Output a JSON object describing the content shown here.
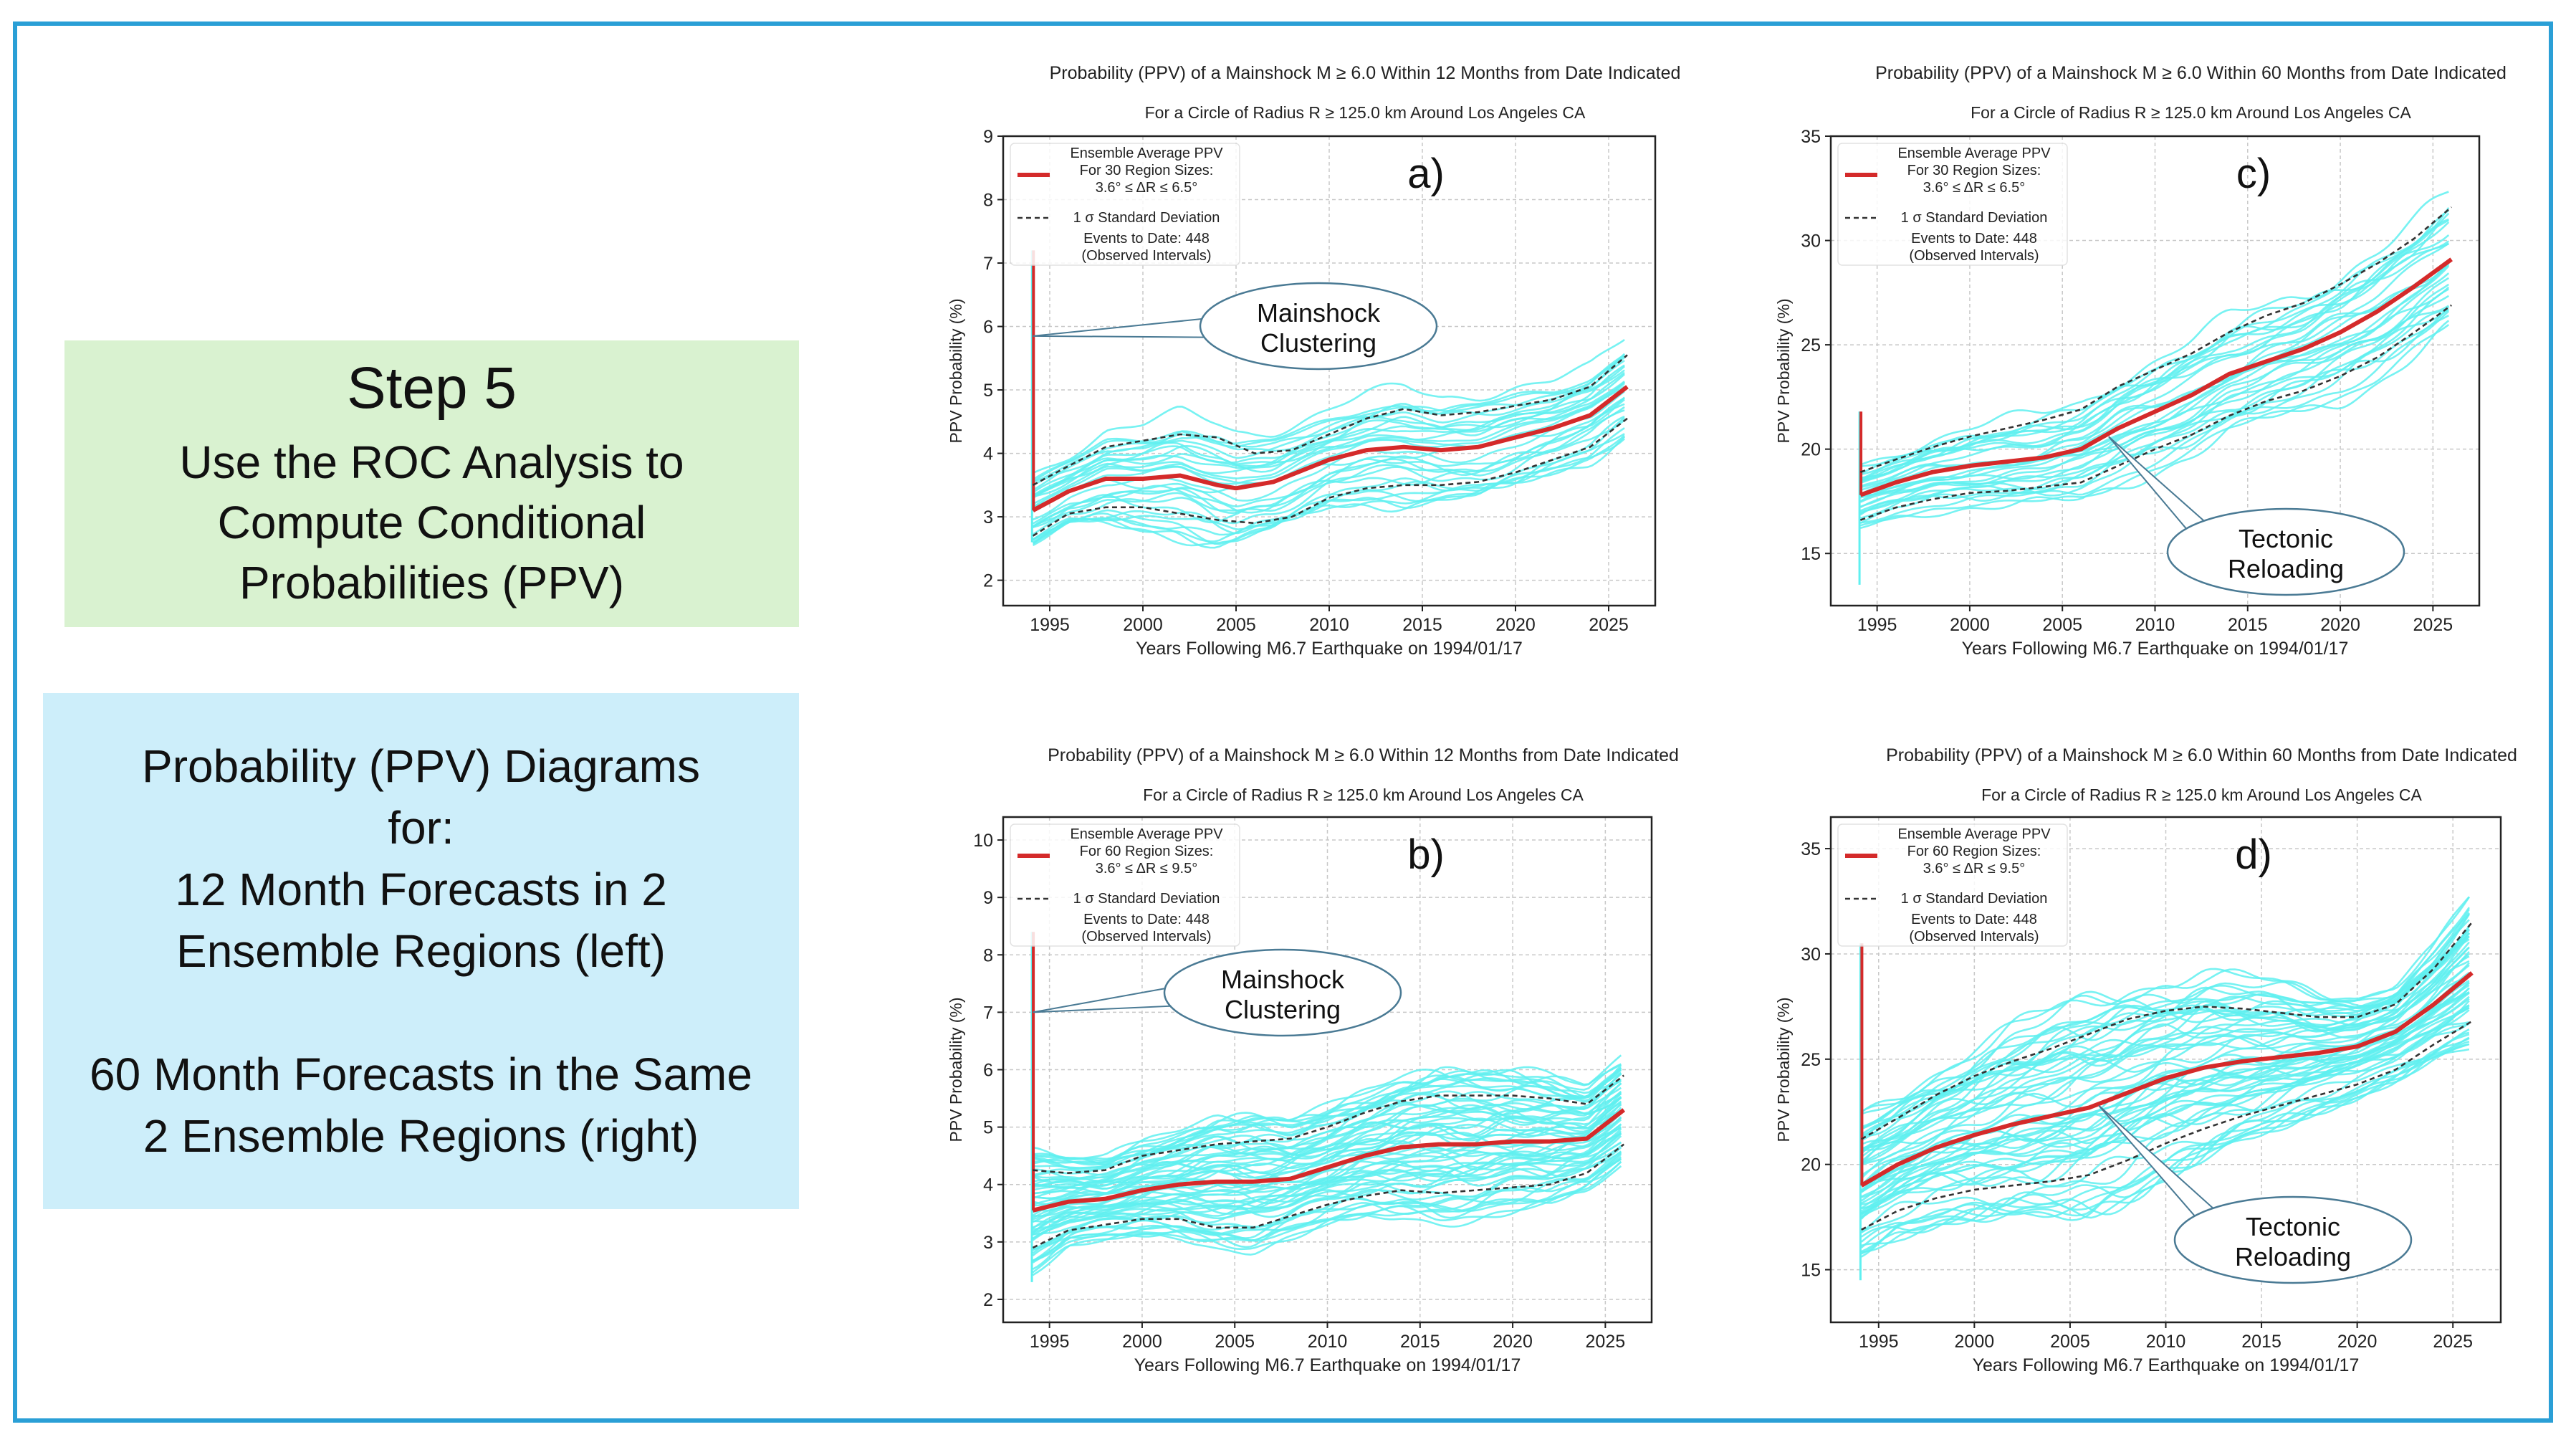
{
  "left_panel": {
    "step_title": "Step 5",
    "step_lines": [
      "Use the ROC Analysis to",
      "Compute Conditional",
      "Probabilities (PPV)"
    ],
    "info_lines_a": [
      "Probability (PPV) Diagrams",
      "for:",
      "12 Month Forecasts in 2",
      "Ensemble Regions (left)"
    ],
    "info_lines_b": [
      "60 Month Forecasts in the Same",
      "2 Ensemble Regions (right)"
    ]
  },
  "colors": {
    "frame": "#2a9fd6",
    "step_box": "#d9f2d0",
    "info_box": "#cdeefa",
    "ensemble_member": "#5ff0f0",
    "average": "#d42a2a",
    "std_dev": "#333333"
  },
  "chart_data": [
    {
      "id": "a",
      "type": "line",
      "panel_label": "a)",
      "title": "Probability (PPV) of a Mainshock M ≥ 6.0 Within 12 Months from Date Indicated",
      "subtitle": "For a Circle of Radius R ≥ 125.0 km Around Los Angeles CA",
      "xlabel": "Years Following M6.7 Earthquake on 1994/01/17",
      "ylabel": "PPV Probability (%)",
      "xlim": [
        1992.5,
        2027.5
      ],
      "ylim": [
        1.6,
        9.0
      ],
      "xticks": [
        1995,
        2000,
        2005,
        2010,
        2015,
        2020,
        2025
      ],
      "yticks": [
        2,
        3,
        4,
        5,
        6,
        7,
        8,
        9
      ],
      "grid": true,
      "legend_position": "top-left",
      "legend": {
        "average_label": [
          "Ensemble Average PPV",
          "For 30 Region Sizes:",
          "3.6° ≤ ΔR ≤ 6.5°"
        ],
        "std_label": "1 σ Standard Deviation",
        "events_label": [
          "Events to Date: 448",
          "(Observed Intervals)"
        ]
      },
      "callout": {
        "lines": [
          "Mainshock",
          "Clustering"
        ],
        "target": [
          1994.1,
          5.85
        ]
      },
      "spike": {
        "x": 1994.05,
        "ymax": 7.2,
        "ymin": 2.6
      },
      "series": [
        {
          "role": "average",
          "x": [
            1994.1,
            1996,
            1998,
            2000,
            2002,
            2004,
            2005,
            2007,
            2010,
            2012,
            2014,
            2016,
            2018,
            2020,
            2022,
            2024,
            2026
          ],
          "values": [
            3.1,
            3.4,
            3.6,
            3.6,
            3.65,
            3.5,
            3.45,
            3.55,
            3.9,
            4.05,
            4.1,
            4.05,
            4.1,
            4.25,
            4.4,
            4.6,
            5.05
          ]
        },
        {
          "role": "std_upper",
          "x": [
            1994.1,
            1996,
            1998,
            2000,
            2002,
            2004,
            2006,
            2008,
            2010,
            2012,
            2014,
            2016,
            2018,
            2020,
            2022,
            2024,
            2026
          ],
          "values": [
            3.5,
            3.8,
            4.1,
            4.2,
            4.3,
            4.25,
            4.0,
            4.05,
            4.3,
            4.55,
            4.7,
            4.6,
            4.65,
            4.75,
            4.85,
            5.05,
            5.55
          ]
        },
        {
          "role": "std_lower",
          "x": [
            1994.1,
            1996,
            1998,
            2000,
            2002,
            2004,
            2006,
            2008,
            2010,
            2012,
            2014,
            2016,
            2018,
            2020,
            2022,
            2024,
            2026
          ],
          "values": [
            2.7,
            3.05,
            3.15,
            3.15,
            3.05,
            2.95,
            2.9,
            3.0,
            3.3,
            3.45,
            3.5,
            3.5,
            3.55,
            3.7,
            3.9,
            4.1,
            4.55
          ]
        }
      ],
      "ensemble_members": 30
    },
    {
      "id": "c",
      "type": "line",
      "panel_label": "c)",
      "title": "Probability (PPV) of a Mainshock M ≥ 6.0 Within 60 Months from Date Indicated",
      "subtitle": "For a Circle of Radius R ≥ 125.0 km Around Los Angeles CA",
      "xlabel": "Years Following M6.7 Earthquake on 1994/01/17",
      "ylabel": "PPV Probability (%)",
      "xlim": [
        1992.5,
        2027.5
      ],
      "ylim": [
        12.5,
        35
      ],
      "xticks": [
        1995,
        2000,
        2005,
        2010,
        2015,
        2020,
        2025
      ],
      "yticks": [
        15,
        20,
        25,
        30,
        35
      ],
      "grid": true,
      "legend_position": "top-left",
      "legend": {
        "average_label": [
          "Ensemble Average PPV",
          "For 30 Region Sizes:",
          "3.6° ≤ ΔR ≤ 6.5°"
        ],
        "std_label": "1 σ Standard Deviation",
        "events_label": [
          "Events to Date: 448",
          "(Observed Intervals)"
        ]
      },
      "callout": {
        "lines": [
          "Tectonic",
          "Reloading"
        ],
        "target": [
          2007.5,
          20.6
        ]
      },
      "spike": {
        "x": 1994.05,
        "ymax": 21.8,
        "ymin": 13.5
      },
      "series": [
        {
          "role": "average",
          "x": [
            1994.1,
            1996,
            1998,
            2000,
            2002,
            2004,
            2006,
            2008,
            2010,
            2012,
            2014,
            2016,
            2018,
            2020,
            2022,
            2024,
            2026
          ],
          "values": [
            17.8,
            18.4,
            18.9,
            19.2,
            19.4,
            19.6,
            20.0,
            21.0,
            21.8,
            22.6,
            23.6,
            24.2,
            24.8,
            25.6,
            26.6,
            27.8,
            29.1
          ]
        },
        {
          "role": "std_upper",
          "x": [
            1994.1,
            1996,
            1998,
            2000,
            2002,
            2004,
            2006,
            2008,
            2010,
            2012,
            2014,
            2016,
            2018,
            2020,
            2022,
            2024,
            2026
          ],
          "values": [
            18.9,
            19.5,
            20.1,
            20.6,
            21.0,
            21.4,
            21.9,
            23.0,
            23.8,
            24.6,
            25.6,
            26.4,
            27.0,
            27.9,
            28.9,
            30.1,
            31.6
          ]
        },
        {
          "role": "std_lower",
          "x": [
            1994.1,
            1996,
            1998,
            2000,
            2002,
            2004,
            2006,
            2008,
            2010,
            2012,
            2014,
            2016,
            2018,
            2020,
            2022,
            2024,
            2026
          ],
          "values": [
            16.6,
            17.2,
            17.6,
            17.9,
            18.0,
            18.2,
            18.4,
            19.2,
            20.0,
            20.7,
            21.6,
            22.3,
            22.8,
            23.5,
            24.4,
            25.6,
            26.9
          ]
        }
      ],
      "ensemble_members": 30
    },
    {
      "id": "b",
      "type": "line",
      "panel_label": "b)",
      "title": "Probability (PPV) of a Mainshock M ≥ 6.0 Within 12 Months from Date Indicated",
      "subtitle": "For a Circle of Radius R ≥ 125.0 km Around Los Angeles CA",
      "xlabel": "Years Following M6.7 Earthquake on 1994/01/17",
      "ylabel": "PPV Probability (%)",
      "xlim": [
        1992.5,
        2027.5
      ],
      "ylim": [
        1.6,
        10.4
      ],
      "xticks": [
        1995,
        2000,
        2005,
        2010,
        2015,
        2020,
        2025
      ],
      "yticks": [
        2,
        3,
        4,
        5,
        6,
        7,
        8,
        9,
        10
      ],
      "grid": true,
      "legend_position": "top-left",
      "legend": {
        "average_label": [
          "Ensemble Average PPV",
          "For 60 Region Sizes:",
          "3.6° ≤ ΔR ≤ 9.5°"
        ],
        "std_label": "1 σ Standard Deviation",
        "events_label": [
          "Events to Date: 448",
          "(Observed Intervals)"
        ]
      },
      "callout": {
        "lines": [
          "Mainshock",
          "Clustering"
        ],
        "target": [
          1994.1,
          7.0
        ]
      },
      "spike": {
        "x": 1994.05,
        "ymax": 8.4,
        "ymin": 2.3
      },
      "series": [
        {
          "role": "average",
          "x": [
            1994.1,
            1996,
            1998,
            2000,
            2002,
            2004,
            2006,
            2008,
            2010,
            2012,
            2014,
            2016,
            2018,
            2020,
            2022,
            2024,
            2026
          ],
          "values": [
            3.55,
            3.7,
            3.75,
            3.9,
            4.0,
            4.05,
            4.05,
            4.1,
            4.3,
            4.5,
            4.65,
            4.7,
            4.7,
            4.75,
            4.75,
            4.8,
            5.3
          ]
        },
        {
          "role": "std_upper",
          "x": [
            1994.1,
            1996,
            1998,
            2000,
            2002,
            2004,
            2006,
            2008,
            2010,
            2012,
            2014,
            2016,
            2018,
            2020,
            2022,
            2024,
            2026
          ],
          "values": [
            4.25,
            4.2,
            4.25,
            4.5,
            4.6,
            4.7,
            4.75,
            4.8,
            5.0,
            5.25,
            5.45,
            5.55,
            5.55,
            5.55,
            5.5,
            5.4,
            5.9
          ]
        },
        {
          "role": "std_lower",
          "x": [
            1994.1,
            1996,
            1998,
            2000,
            2002,
            2004,
            2006,
            2008,
            2010,
            2012,
            2014,
            2016,
            2018,
            2020,
            2022,
            2024,
            2026
          ],
          "values": [
            2.9,
            3.2,
            3.3,
            3.4,
            3.4,
            3.25,
            3.25,
            3.45,
            3.65,
            3.8,
            3.9,
            3.85,
            3.9,
            3.95,
            4.0,
            4.2,
            4.7
          ]
        }
      ],
      "ensemble_members": 60
    },
    {
      "id": "d",
      "type": "line",
      "panel_label": "d)",
      "title": "Probability (PPV) of a Mainshock M ≥ 6.0 Within 60 Months from Date Indicated",
      "subtitle": "For a Circle of Radius R ≥ 125.0 km Around Los Angeles CA",
      "xlabel": "Years Following M6.7 Earthquake on 1994/01/17",
      "ylabel": "PPV Probability (%)",
      "xlim": [
        1992.5,
        2027.5
      ],
      "ylim": [
        12.5,
        36.5
      ],
      "xticks": [
        1995,
        2000,
        2005,
        2010,
        2015,
        2020,
        2025
      ],
      "yticks": [
        15,
        20,
        25,
        30,
        35
      ],
      "grid": true,
      "legend_position": "top-left",
      "legend": {
        "average_label": [
          "Ensemble Average PPV",
          "For 60 Region Sizes:",
          "3.6° ≤ ΔR ≤ 9.5°"
        ],
        "std_label": "1 σ Standard Deviation",
        "events_label": [
          "Events to Date: 448",
          "(Observed Intervals)"
        ]
      },
      "callout": {
        "lines": [
          "Tectonic",
          "Reloading"
        ],
        "target": [
          2006.5,
          22.8
        ]
      },
      "spike": {
        "x": 1994.05,
        "ymax": 30.5,
        "ymin": 14.5
      },
      "series": [
        {
          "role": "average",
          "x": [
            1994.1,
            1996,
            1998,
            2000,
            2002,
            2004,
            2006,
            2008,
            2010,
            2012,
            2014,
            2016,
            2018,
            2020,
            2022,
            2024,
            2026
          ],
          "values": [
            19.0,
            20.0,
            20.8,
            21.4,
            21.9,
            22.3,
            22.7,
            23.4,
            24.1,
            24.6,
            24.9,
            25.1,
            25.3,
            25.6,
            26.3,
            27.6,
            29.1
          ]
        },
        {
          "role": "std_upper",
          "x": [
            1994.1,
            1996,
            1998,
            2000,
            2002,
            2004,
            2006,
            2008,
            2010,
            2012,
            2014,
            2016,
            2018,
            2020,
            2022,
            2024,
            2026
          ],
          "values": [
            21.2,
            22.2,
            23.3,
            24.2,
            24.9,
            25.5,
            26.2,
            26.9,
            27.3,
            27.5,
            27.4,
            27.2,
            27.0,
            27.0,
            27.6,
            29.3,
            31.5
          ]
        },
        {
          "role": "std_lower",
          "x": [
            1994.1,
            1996,
            1998,
            2000,
            2002,
            2004,
            2006,
            2008,
            2010,
            2012,
            2014,
            2016,
            2018,
            2020,
            2022,
            2024,
            2026
          ],
          "values": [
            16.9,
            17.8,
            18.4,
            18.8,
            19.0,
            19.2,
            19.5,
            20.2,
            21.0,
            21.7,
            22.3,
            22.8,
            23.3,
            23.8,
            24.5,
            25.7,
            26.8
          ]
        }
      ],
      "ensemble_members": 60
    }
  ]
}
